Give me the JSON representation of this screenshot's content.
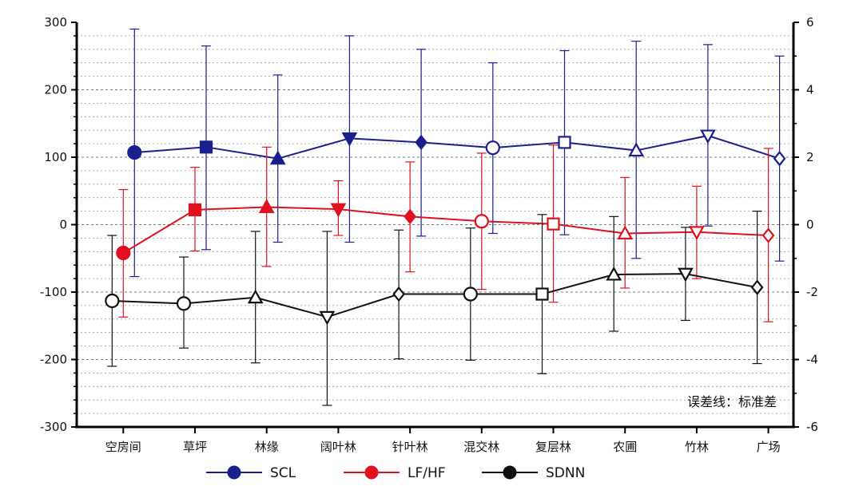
{
  "chart_data": {
    "type": "line",
    "categories": [
      "空房间",
      "草坪",
      "林缘",
      "阔叶林",
      "针叶林",
      "混交林",
      "复层林",
      "农圃",
      "竹林",
      "广场"
    ],
    "ylim_left": [
      -300,
      300
    ],
    "ylim_right": [
      -6,
      6
    ],
    "yticks_left": [
      "300",
      "200",
      "100",
      "0",
      "-100",
      "-200",
      "-300"
    ],
    "yticks_right": [
      "6",
      "4",
      "2",
      "0",
      "-2",
      "-4",
      "-6"
    ],
    "grid": true,
    "note": "误差线：标准差",
    "legend_position": "bottom",
    "series": [
      {
        "name": "SCL",
        "color": "#1a1f8c",
        "values": [
          107,
          115,
          98,
          128,
          122,
          114,
          122,
          110,
          132,
          98
        ],
        "upper": [
          290,
          265,
          222,
          280,
          260,
          240,
          258,
          272,
          267,
          250
        ],
        "lower": [
          -77,
          -37,
          -26,
          -26,
          -17,
          -13,
          -15,
          -50,
          -2,
          -54
        ],
        "markers": [
          "circle",
          "square",
          "triangle-up",
          "triangle-down",
          "diamond",
          "circle-open",
          "square-open",
          "triangle-up-open",
          "triangle-down-open",
          "diamond-open"
        ]
      },
      {
        "name": "LF/HF",
        "color": "#e0101e",
        "values": [
          -42,
          22,
          26,
          23,
          12,
          5,
          1,
          -13,
          -11,
          -16
        ],
        "upper": [
          52,
          85,
          115,
          65,
          93,
          106,
          118,
          70,
          57,
          113
        ],
        "lower": [
          -137,
          -39,
          -62,
          -16,
          -70,
          -96,
          -115,
          -94,
          -80,
          -144
        ],
        "markers": [
          "circle",
          "square",
          "triangle-up",
          "triangle-down",
          "diamond",
          "circle-open",
          "square-open",
          "triangle-up-open",
          "triangle-down-open",
          "diamond-open"
        ]
      },
      {
        "name": "SDNN",
        "color": "#111111",
        "values": [
          -113,
          -117,
          -108,
          -137,
          -103,
          -103,
          -103,
          -74,
          -73,
          -93
        ],
        "upper": [
          -16,
          -48,
          -10,
          -10,
          -8,
          -5,
          15,
          12,
          -4,
          20
        ],
        "lower": [
          -210,
          -183,
          -205,
          -268,
          -199,
          -201,
          -221,
          -158,
          -142,
          -206
        ],
        "markers": [
          "circle-open",
          "circle-open",
          "triangle-up-open",
          "triangle-down-open",
          "diamond-open",
          "circle-open",
          "square-open",
          "triangle-up-open",
          "triangle-down-open",
          "diamond-open"
        ]
      }
    ]
  }
}
